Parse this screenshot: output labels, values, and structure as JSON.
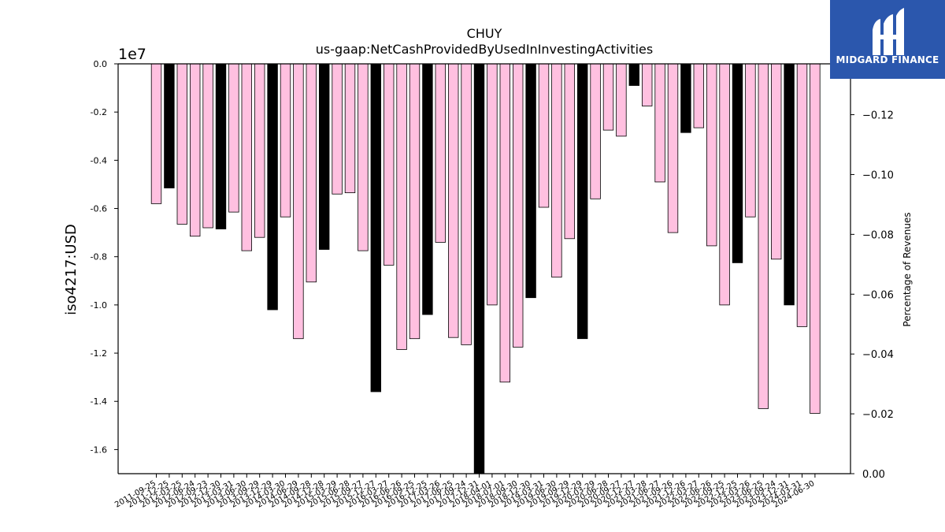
{
  "chart_data": {
    "type": "bar",
    "title": "CHUY",
    "subtitle": "us-gaap:NetCashProvidedByUsedInInvestingActivities",
    "ylabel": "iso4217:USD",
    "y_offset_label": "1e7",
    "y2label": "Percentage of Revenues",
    "ylim": [
      -1.7,
      0.0
    ],
    "y_scale_factor": 10000000,
    "y_ticks": [
      "0.0",
      "-0.2",
      "-0.4",
      "-0.6",
      "-0.8",
      "-1.0",
      "-1.2",
      "-1.4",
      "-1.6"
    ],
    "y2lim": [
      0.0,
      -0.137
    ],
    "y2_ticks": [
      "0.00",
      "−0.02",
      "−0.04",
      "−0.06",
      "−0.08",
      "−0.10",
      "−0.12"
    ],
    "x_tick_labels": [
      "2011-09-25",
      "2011-12-25",
      "2012-03-25",
      "2012-06-24",
      "2012-09-23",
      "2012-12-30",
      "2013-03-31",
      "2013-06-30",
      "2013-09-29",
      "2013-12-29",
      "2014-03-30",
      "2014-06-29",
      "2014-09-28",
      "2014-12-28",
      "2015-03-29",
      "2015-06-28",
      "2015-09-27",
      "2015-12-27",
      "2016-03-27",
      "2016-06-26",
      "2016-09-25",
      "2016-12-25",
      "2017-03-26",
      "2017-06-25",
      "2017-09-24",
      "2017-12-31",
      "2018-04-01",
      "2018-07-01",
      "2018-09-30",
      "2018-12-30",
      "2019-03-31",
      "2019-06-30",
      "2019-09-29",
      "2019-12-29",
      "2020-03-29",
      "2020-06-28",
      "2020-09-27",
      "2020-12-27",
      "2021-03-28",
      "2021-06-27",
      "2021-09-26",
      "2021-12-26",
      "2022-03-27",
      "2022-06-26",
      "2022-09-25",
      "2022-12-25",
      "2023-03-26",
      "2023-06-25",
      "2023-09-24",
      "2023-12-31",
      "2024-03-31",
      "2024-06-30"
    ],
    "values": [
      -0.58,
      -0.515,
      -0.665,
      -0.715,
      -0.68,
      -0.685,
      -0.615,
      -0.775,
      -0.72,
      -1.02,
      -0.635,
      -1.14,
      -0.905,
      -0.77,
      -0.54,
      -0.535,
      -0.775,
      -1.36,
      -0.835,
      -1.185,
      -1.14,
      -1.04,
      -0.74,
      -1.135,
      -1.165,
      -1.7,
      -1.0,
      -1.32,
      -1.175,
      -0.97,
      -0.595,
      -0.885,
      -0.725,
      -1.14,
      -0.56,
      -0.275,
      -0.3,
      -0.09,
      -0.175,
      -0.49,
      -0.7,
      -0.285,
      -0.265,
      -0.755,
      -1.0,
      -0.825,
      -0.635,
      -1.43,
      -0.81,
      -1.0,
      -1.09,
      -1.45
    ],
    "bar_colors": [
      "#ffc0e0",
      "#000000",
      "#ffc0e0",
      "#ffc0e0",
      "#ffc0e0",
      "#000000",
      "#ffc0e0",
      "#ffc0e0",
      "#ffc0e0",
      "#000000",
      "#ffc0e0",
      "#ffc0e0",
      "#ffc0e0",
      "#000000",
      "#ffc0e0",
      "#ffc0e0",
      "#ffc0e0",
      "#000000",
      "#ffc0e0",
      "#ffc0e0",
      "#ffc0e0",
      "#000000",
      "#ffc0e0",
      "#ffc0e0",
      "#ffc0e0",
      "#000000",
      "#ffc0e0",
      "#ffc0e0",
      "#ffc0e0",
      "#000000",
      "#ffc0e0",
      "#ffc0e0",
      "#ffc0e0",
      "#000000",
      "#ffc0e0",
      "#ffc0e0",
      "#ffc0e0",
      "#000000",
      "#ffc0e0",
      "#ffc0e0",
      "#ffc0e0",
      "#000000",
      "#ffc0e0",
      "#ffc0e0",
      "#ffc0e0",
      "#000000",
      "#ffc0e0",
      "#ffc0e0",
      "#ffc0e0",
      "#000000",
      "#ffc0e0",
      "#ffc0e0"
    ],
    "grid": false,
    "legend": "none"
  },
  "logo": {
    "brand": "MIDGARD FINANCE",
    "background": "#2b57ad",
    "text_color": "#ffffff"
  }
}
